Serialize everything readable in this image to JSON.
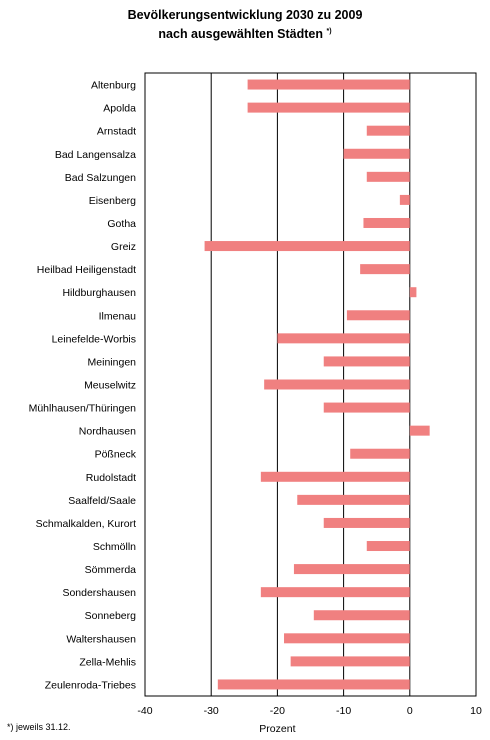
{
  "title_line1": "Bevölkerungsentwicklung 2030 zu 2009",
  "title_line2": "nach ausgewählten Städten",
  "title_marker": "*)",
  "footnote": "*) jeweils 31.12.",
  "colors": {
    "bar": "#f08080",
    "axis": "#000000"
  },
  "chart_data": {
    "type": "bar",
    "orientation": "horizontal",
    "title": "Bevölkerungsentwicklung 2030 zu 2009 nach ausgewählten Städten *)",
    "xlabel": "Prozent",
    "ylabel": "",
    "xlim": [
      -40,
      10
    ],
    "xticks": [
      -40,
      -30,
      -20,
      -10,
      0,
      10
    ],
    "grid": "vertical",
    "categories": [
      "Altenburg",
      "Apolda",
      "Arnstadt",
      "Bad Langensalza",
      "Bad Salzungen",
      "Eisenberg",
      "Gotha",
      "Greiz",
      "Heilbad Heiligenstadt",
      "Hildburghausen",
      "Ilmenau",
      "Leinefelde-Worbis",
      "Meiningen",
      "Meuselwitz",
      "Mühlhausen/Thüringen",
      "Nordhausen",
      "Pößneck",
      "Rudolstadt",
      "Saalfeld/Saale",
      "Schmalkalden, Kurort",
      "Schmölln",
      "Sömmerda",
      "Sondershausen",
      "Sonneberg",
      "Waltershausen",
      "Zella-Mehlis",
      "Zeulenroda-Triebes"
    ],
    "values": [
      -24.5,
      -24.5,
      -6.5,
      -10,
      -6.5,
      -1.5,
      -7,
      -31,
      -7.5,
      1,
      -9.5,
      -20,
      -13,
      -22,
      -13,
      3,
      -9,
      -22.5,
      -17,
      -13,
      -6.5,
      -17.5,
      -22.5,
      -14.5,
      -19,
      -18,
      -29
    ]
  }
}
